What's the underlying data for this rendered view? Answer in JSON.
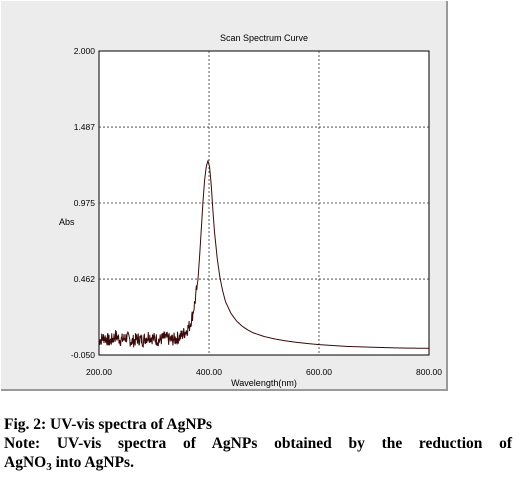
{
  "chart_data": {
    "type": "line",
    "title": "Scan Spectrum Curve",
    "xlabel": "Wavelength(nm)",
    "ylabel": "Abs",
    "xlim": [
      200,
      800
    ],
    "ylim": [
      -0.05,
      2.0
    ],
    "x_ticks": [
      "200.00",
      "400.00",
      "600.00",
      "800.00"
    ],
    "y_ticks": [
      "2.000",
      "1.487",
      "0.975",
      "0.462",
      "-0.050"
    ],
    "grid": true,
    "line_color": "#3a0a0a",
    "series": [
      {
        "values_note_unused": "",
        "x": [
          200,
          210,
          220,
          230,
          240,
          250,
          260,
          270,
          280,
          290,
          300,
          310,
          320,
          330,
          340,
          350,
          355,
          360,
          365,
          370,
          375,
          380,
          383,
          386,
          389,
          392,
          395,
          398,
          401,
          404,
          407,
          410,
          415,
          420,
          425,
          430,
          440,
          450,
          460,
          470,
          480,
          500,
          520,
          540,
          560,
          580,
          600,
          650,
          700,
          750,
          800
        ],
        "y": [
          0.05,
          0.07,
          0.04,
          0.08,
          0.05,
          0.07,
          0.04,
          0.06,
          0.05,
          0.08,
          0.06,
          0.05,
          0.07,
          0.05,
          0.06,
          0.08,
          0.1,
          0.12,
          0.15,
          0.22,
          0.32,
          0.46,
          0.62,
          0.8,
          0.98,
          1.13,
          1.22,
          1.26,
          1.22,
          1.1,
          0.93,
          0.78,
          0.6,
          0.47,
          0.38,
          0.31,
          0.23,
          0.18,
          0.145,
          0.12,
          0.1,
          0.075,
          0.058,
          0.045,
          0.035,
          0.027,
          0.02,
          0.008,
          0.002,
          -0.003,
          -0.005
        ]
      }
    ]
  },
  "caption": {
    "fig_line": "Fig. 2: UV-vis spectra of AgNPs",
    "note_line1": "Note: UV-vis spectra of AgNPs obtained by the reduction of",
    "note_line2_pre": "AgNO",
    "note_line2_sub": "3",
    "note_line2_post": "into AgNPs."
  }
}
